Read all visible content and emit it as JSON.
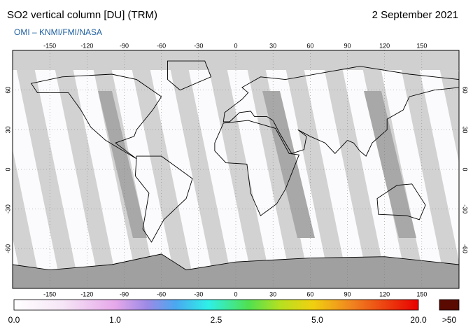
{
  "header": {
    "title": "SO2 vertical column [DU] (TRM)",
    "source": "OMI  –  KNMI/FMI/NASA",
    "date": "2 September 2021"
  },
  "map": {
    "lon_ticks": [
      -150,
      -120,
      -90,
      -60,
      -30,
      0,
      30,
      60,
      90,
      120,
      150
    ],
    "lat_ticks": [
      -60,
      -30,
      0,
      30,
      60
    ]
  },
  "colorbar": {
    "labels": [
      "0.0",
      "1.0",
      "2.5",
      "5.0",
      "20.0",
      ">50"
    ]
  }
}
